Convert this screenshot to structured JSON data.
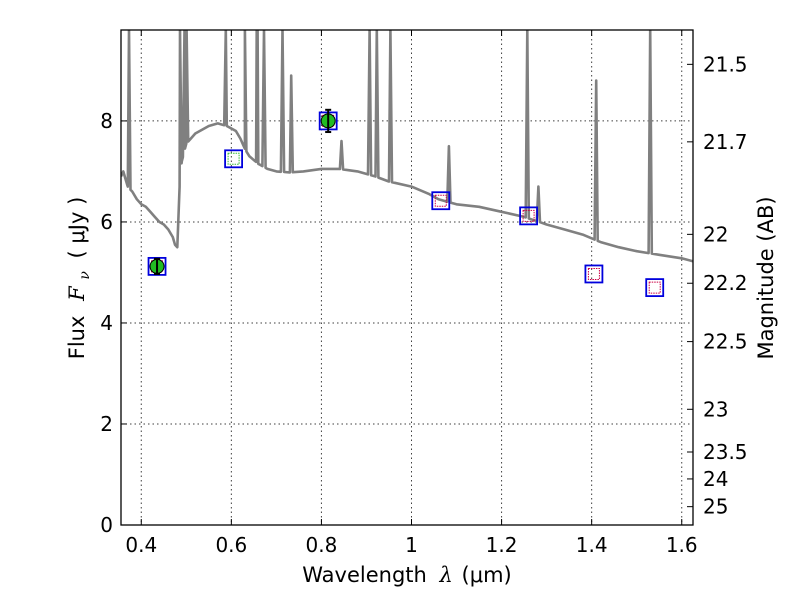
{
  "chart_data": {
    "type": "line",
    "title": "",
    "xlabel_prefix": "Wavelength",
    "xlabel_symbol": "λ",
    "xlabel_unit": "(μm)",
    "ylabel_prefix": "Flux",
    "ylabel_symbol_main": "F",
    "ylabel_symbol_sub": "ν",
    "ylabel_unit": "( μJy )",
    "y2label": "Magnitude (AB)",
    "xlim": [
      0.355,
      1.625
    ],
    "ylim": [
      0,
      9.8
    ],
    "grid": true,
    "x_ticks": [
      {
        "value": 0.4,
        "label": "0.4"
      },
      {
        "value": 0.6,
        "label": "0.6"
      },
      {
        "value": 0.8,
        "label": "0.8"
      },
      {
        "value": 1.0,
        "label": "1"
      },
      {
        "value": 1.2,
        "label": "1.2"
      },
      {
        "value": 1.4,
        "label": "1.4"
      },
      {
        "value": 1.6,
        "label": "1.6"
      }
    ],
    "y_ticks": [
      {
        "value": 0,
        "label": "0"
      },
      {
        "value": 2,
        "label": "2"
      },
      {
        "value": 4,
        "label": "4"
      },
      {
        "value": 6,
        "label": "6"
      },
      {
        "value": 8,
        "label": "8"
      }
    ],
    "y2_ticks": [
      {
        "value": 21.5,
        "label": "21.5"
      },
      {
        "value": 21.7,
        "label": "21.7"
      },
      {
        "value": 22.0,
        "label": "22"
      },
      {
        "value": 22.2,
        "label": "22.2"
      },
      {
        "value": 22.5,
        "label": "22.5"
      },
      {
        "value": 23.0,
        "label": "23"
      },
      {
        "value": 23.5,
        "label": "23.5"
      },
      {
        "value": 24.0,
        "label": "24"
      },
      {
        "value": 25.0,
        "label": "25"
      }
    ],
    "colors": {
      "sed": "#808080",
      "obs_fill": "#22bb22",
      "box": "#0000dd",
      "model_red": "#cc0044",
      "model_green": "#33bb33"
    },
    "sed_model": {
      "name": "model SED",
      "continuum": [
        [
          0.355,
          6.9
        ],
        [
          0.36,
          7.0
        ],
        [
          0.365,
          6.85
        ],
        [
          0.37,
          6.7
        ],
        [
          0.38,
          6.6
        ],
        [
          0.39,
          6.45
        ],
        [
          0.4,
          6.35
        ],
        [
          0.41,
          6.3
        ],
        [
          0.42,
          6.2
        ],
        [
          0.43,
          6.1
        ],
        [
          0.44,
          6.0
        ],
        [
          0.45,
          5.95
        ],
        [
          0.46,
          5.85
        ],
        [
          0.47,
          5.7
        ],
        [
          0.475,
          5.55
        ],
        [
          0.48,
          5.5
        ],
        [
          0.485,
          6.7
        ],
        [
          0.49,
          7.2
        ],
        [
          0.5,
          7.55
        ],
        [
          0.51,
          7.65
        ],
        [
          0.52,
          7.75
        ],
        [
          0.53,
          7.8
        ],
        [
          0.54,
          7.85
        ],
        [
          0.55,
          7.9
        ],
        [
          0.57,
          7.95
        ],
        [
          0.59,
          7.9
        ],
        [
          0.61,
          7.8
        ],
        [
          0.62,
          7.65
        ],
        [
          0.63,
          7.45
        ],
        [
          0.64,
          7.3
        ],
        [
          0.66,
          7.15
        ],
        [
          0.68,
          7.05
        ],
        [
          0.7,
          7.0
        ],
        [
          0.73,
          6.98
        ],
        [
          0.76,
          7.0
        ],
        [
          0.8,
          7.05
        ],
        [
          0.84,
          7.05
        ],
        [
          0.88,
          7.0
        ],
        [
          0.92,
          6.9
        ],
        [
          0.95,
          6.8
        ],
        [
          1.0,
          6.7
        ],
        [
          1.04,
          6.55
        ],
        [
          1.06,
          6.45
        ],
        [
          1.1,
          6.35
        ],
        [
          1.15,
          6.3
        ],
        [
          1.2,
          6.2
        ],
        [
          1.25,
          6.1
        ],
        [
          1.3,
          5.95
        ],
        [
          1.34,
          5.85
        ],
        [
          1.38,
          5.75
        ],
        [
          1.42,
          5.6
        ],
        [
          1.46,
          5.5
        ],
        [
          1.5,
          5.42
        ],
        [
          1.55,
          5.35
        ],
        [
          1.6,
          5.28
        ],
        [
          1.625,
          5.22
        ]
      ],
      "emission_lines": [
        {
          "x": 0.3727,
          "peak": 9.8
        },
        {
          "x": 0.4861,
          "peak": 9.8
        },
        {
          "x": 0.4959,
          "peak": 9.8
        },
        {
          "x": 0.5007,
          "peak": 9.8
        },
        {
          "x": 0.5876,
          "peak": 9.8
        },
        {
          "x": 0.63,
          "peak": 9.8
        },
        {
          "x": 0.6563,
          "peak": 9.8
        },
        {
          "x": 0.6584,
          "peak": 9.8
        },
        {
          "x": 0.6725,
          "peak": 9.8
        },
        {
          "x": 0.7136,
          "peak": 9.8
        },
        {
          "x": 0.733,
          "peak": 8.9
        },
        {
          "x": 0.8446,
          "peak": 7.6
        },
        {
          "x": 0.9069,
          "peak": 9.8
        },
        {
          "x": 0.9229,
          "peak": 9.8
        },
        {
          "x": 0.9531,
          "peak": 9.8
        },
        {
          "x": 1.083,
          "peak": 7.5
        },
        {
          "x": 1.257,
          "peak": 9.8
        },
        {
          "x": 1.2818,
          "peak": 6.7
        },
        {
          "x": 1.41,
          "peak": 8.8
        },
        {
          "x": 1.53,
          "peak": 9.8
        }
      ]
    },
    "observations": [
      {
        "name": "obs-0.44",
        "x": 0.435,
        "y": 5.12,
        "err": 0.15,
        "filled": true
      },
      {
        "name": "obs-0.81",
        "x": 0.815,
        "y": 8.0,
        "err": 0.22,
        "filled": true
      }
    ],
    "model_points": [
      {
        "name": "model-0.44",
        "x": 0.435,
        "y": 5.12,
        "color_key": "model_red"
      },
      {
        "name": "model-0.61",
        "x": 0.605,
        "y": 7.25,
        "color_key": "model_green"
      },
      {
        "name": "model-0.81",
        "x": 0.815,
        "y": 8.0,
        "color_key": "model_red"
      },
      {
        "name": "model-1.07",
        "x": 1.065,
        "y": 6.42,
        "color_key": "model_red"
      },
      {
        "name": "model-1.26",
        "x": 1.26,
        "y": 6.12,
        "color_key": "model_red"
      },
      {
        "name": "model-1.41",
        "x": 1.405,
        "y": 4.97,
        "color_key": "model_red"
      },
      {
        "name": "model-1.54",
        "x": 1.54,
        "y": 4.7,
        "color_key": "model_red"
      }
    ]
  }
}
